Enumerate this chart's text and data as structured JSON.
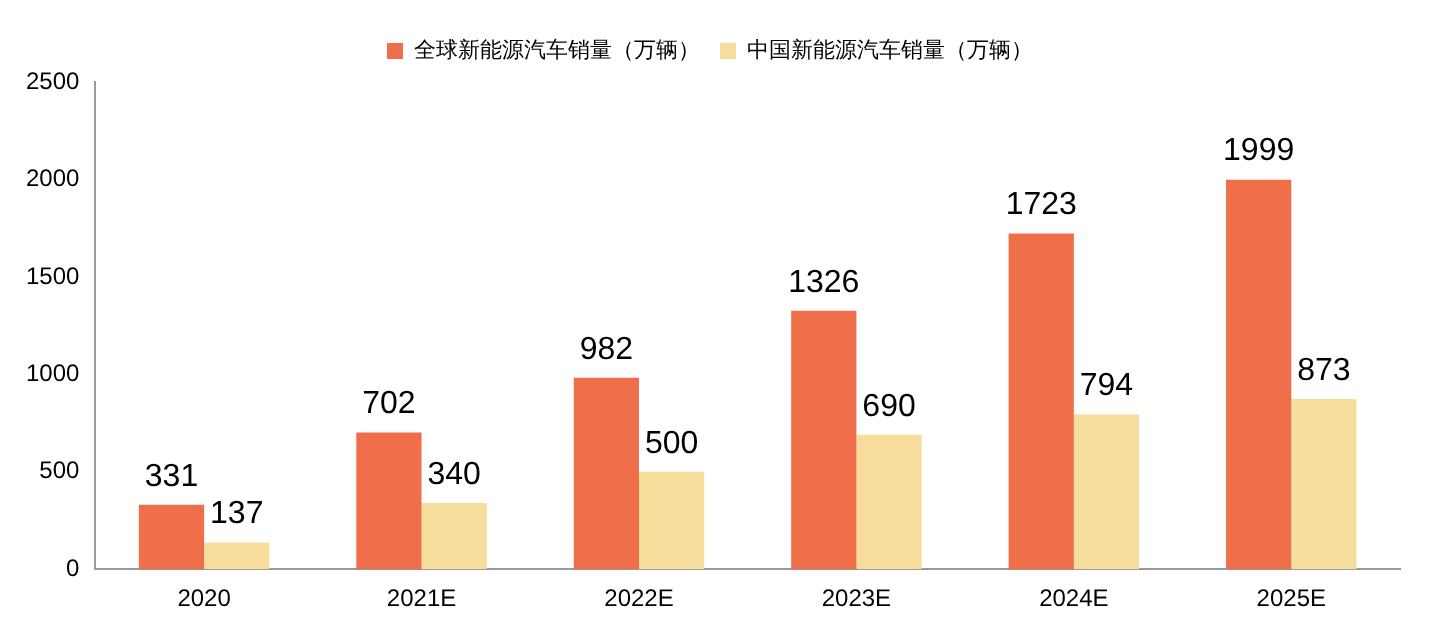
{
  "chart_data": {
    "type": "bar",
    "categories": [
      "2020",
      "2021E",
      "2022E",
      "2023E",
      "2024E",
      "2025E"
    ],
    "series": [
      {
        "name": "全球新能源汽车销量（万辆）",
        "color": "#ee6f4a",
        "values": [
          331,
          702,
          982,
          1326,
          1723,
          1999
        ]
      },
      {
        "name": "中国新能源汽车销量（万辆）",
        "color": "#f6dd9b",
        "values": [
          137,
          340,
          500,
          690,
          794,
          873
        ]
      }
    ],
    "ylim": [
      0,
      2500
    ],
    "yticks": [
      0,
      500,
      1000,
      1500,
      2000,
      2500
    ],
    "grid": false,
    "legend": "top",
    "data_labels": true
  }
}
